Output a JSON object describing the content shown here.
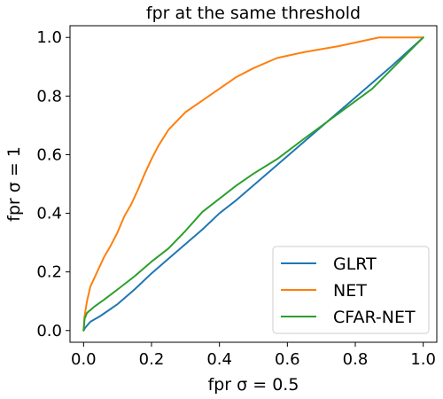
{
  "chart_data": {
    "type": "line",
    "title": "fpr at the same threshold",
    "xlabel": "fpr σ = 0.5",
    "ylabel": "fpr σ = 1",
    "xlim": [
      -0.04,
      1.04
    ],
    "ylim": [
      -0.04,
      1.04
    ],
    "xticks": [
      0.0,
      0.2,
      0.4,
      0.6,
      0.8,
      1.0
    ],
    "yticks": [
      0.0,
      0.2,
      0.4,
      0.6,
      0.8,
      1.0
    ],
    "xtick_labels": [
      "0.0",
      "0.2",
      "0.4",
      "0.6",
      "0.8",
      "1.0"
    ],
    "ytick_labels": [
      "0.0",
      "0.2",
      "0.4",
      "0.6",
      "0.8",
      "1.0"
    ],
    "grid": false,
    "legend_position": "bottom-right",
    "series": [
      {
        "name": "GLRT",
        "color": "#1f77b4",
        "x": [
          0.0,
          0.005,
          0.02,
          0.05,
          0.1,
          0.15,
          0.2,
          0.25,
          0.3,
          0.35,
          0.4,
          0.45,
          0.5,
          0.55,
          0.6,
          0.7,
          0.8,
          0.9,
          1.0
        ],
        "y": [
          0.0,
          0.01,
          0.03,
          0.05,
          0.09,
          0.14,
          0.195,
          0.245,
          0.295,
          0.345,
          0.4,
          0.445,
          0.495,
          0.545,
          0.595,
          0.695,
          0.795,
          0.895,
          1.0
        ]
      },
      {
        "name": "NET",
        "color": "#ff7f0e",
        "x": [
          0.0,
          0.003,
          0.01,
          0.02,
          0.04,
          0.06,
          0.08,
          0.1,
          0.12,
          0.14,
          0.16,
          0.18,
          0.2,
          0.22,
          0.25,
          0.3,
          0.35,
          0.4,
          0.45,
          0.5,
          0.57,
          0.65,
          0.75,
          0.87,
          1.0
        ],
        "y": [
          0.0,
          0.05,
          0.1,
          0.15,
          0.2,
          0.25,
          0.29,
          0.335,
          0.39,
          0.43,
          0.48,
          0.535,
          0.585,
          0.63,
          0.685,
          0.745,
          0.785,
          0.825,
          0.865,
          0.895,
          0.93,
          0.95,
          0.97,
          1.0,
          1.0
        ]
      },
      {
        "name": "CFAR-NET",
        "color": "#2ca02c",
        "x": [
          0.0,
          0.003,
          0.01,
          0.03,
          0.06,
          0.1,
          0.15,
          0.2,
          0.25,
          0.3,
          0.35,
          0.4,
          0.45,
          0.5,
          0.57,
          0.65,
          0.75,
          0.85,
          1.0
        ],
        "y": [
          0.0,
          0.04,
          0.06,
          0.08,
          0.105,
          0.14,
          0.185,
          0.235,
          0.28,
          0.34,
          0.405,
          0.45,
          0.495,
          0.535,
          0.585,
          0.655,
          0.74,
          0.825,
          1.0
        ]
      }
    ]
  }
}
